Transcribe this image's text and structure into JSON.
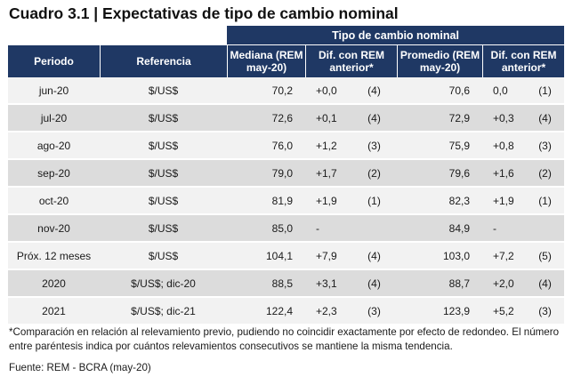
{
  "title": "Cuadro 3.1 | Expectativas de tipo de cambio nominal",
  "table": {
    "super_header": "Tipo de cambio nominal",
    "headers": {
      "periodo": "Periodo",
      "referencia": "Referencia",
      "mediana": "Mediana (REM may-20)",
      "dif_mediana": "Dif. con REM anterior*",
      "promedio": "Promedio (REM may-20)",
      "dif_promedio": "Dif. con REM anterior*"
    },
    "rows": [
      {
        "periodo": "jun-20",
        "referencia": "$/US$",
        "mediana": "70,2",
        "dif_med": "+0,0",
        "cnt_med": "(4)",
        "promedio": "70,6",
        "dif_prom": "0,0",
        "cnt_prom": "(1)"
      },
      {
        "periodo": "jul-20",
        "referencia": "$/US$",
        "mediana": "72,6",
        "dif_med": "+0,1",
        "cnt_med": "(4)",
        "promedio": "72,9",
        "dif_prom": "+0,3",
        "cnt_prom": "(4)"
      },
      {
        "periodo": "ago-20",
        "referencia": "$/US$",
        "mediana": "76,0",
        "dif_med": "+1,2",
        "cnt_med": "(3)",
        "promedio": "75,9",
        "dif_prom": "+0,8",
        "cnt_prom": "(3)"
      },
      {
        "periodo": "sep-20",
        "referencia": "$/US$",
        "mediana": "79,0",
        "dif_med": "+1,7",
        "cnt_med": "(2)",
        "promedio": "79,6",
        "dif_prom": "+1,6",
        "cnt_prom": "(2)"
      },
      {
        "periodo": "oct-20",
        "referencia": "$/US$",
        "mediana": "81,9",
        "dif_med": "+1,9",
        "cnt_med": "(1)",
        "promedio": "82,3",
        "dif_prom": "+1,9",
        "cnt_prom": "(1)"
      },
      {
        "periodo": "nov-20",
        "referencia": "$/US$",
        "mediana": "85,0",
        "dif_med": "-",
        "cnt_med": "",
        "promedio": "84,9",
        "dif_prom": "-",
        "cnt_prom": ""
      },
      {
        "periodo": "Próx. 12 meses",
        "referencia": "$/US$",
        "mediana": "104,1",
        "dif_med": "+7,9",
        "cnt_med": "(4)",
        "promedio": "103,0",
        "dif_prom": "+7,2",
        "cnt_prom": "(5)"
      },
      {
        "periodo": "2020",
        "referencia": "$/US$; dic-20",
        "mediana": "88,5",
        "dif_med": "+3,1",
        "cnt_med": "(4)",
        "promedio": "88,7",
        "dif_prom": "+2,0",
        "cnt_prom": "(4)"
      },
      {
        "periodo": "2021",
        "referencia": "$/US$; dic-21",
        "mediana": "122,4",
        "dif_med": "+2,3",
        "cnt_med": "(3)",
        "promedio": "123,9",
        "dif_prom": "+5,2",
        "cnt_prom": "(3)"
      }
    ]
  },
  "footnote": "*Comparación en relación al relevamiento previo, pudiendo no coincidir exactamente por efecto de redondeo. El número entre paréntesis indica por cuántos relevamientos consecutivos se mantiene la misma tendencia.",
  "source": "Fuente: REM - BCRA (may-20)"
}
